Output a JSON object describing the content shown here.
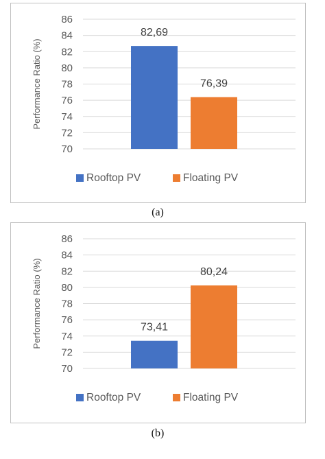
{
  "chart_data": [
    {
      "type": "bar",
      "categories": [
        "Rooftop PV",
        "Floating PV"
      ],
      "values": [
        82.69,
        76.39
      ],
      "data_labels": [
        "82,69",
        "76,39"
      ],
      "colors": [
        "#4472C4",
        "#ED7D31"
      ],
      "ylabel": "Performance Ratio (%)",
      "ylim": [
        70,
        86
      ],
      "yticks": [
        70,
        72,
        74,
        76,
        78,
        80,
        82,
        84,
        86
      ],
      "grid": true,
      "legend_position": "bottom",
      "caption": "(a)"
    },
    {
      "type": "bar",
      "categories": [
        "Rooftop PV",
        "Floating PV"
      ],
      "values": [
        73.41,
        80.24
      ],
      "data_labels": [
        "73,41",
        "80,24"
      ],
      "colors": [
        "#4472C4",
        "#ED7D31"
      ],
      "ylabel": "Performance Ratio (%)",
      "ylim": [
        70,
        86
      ],
      "yticks": [
        70,
        72,
        74,
        76,
        78,
        80,
        82,
        84,
        86
      ],
      "grid": true,
      "legend_position": "bottom",
      "caption": "(b)"
    }
  ]
}
